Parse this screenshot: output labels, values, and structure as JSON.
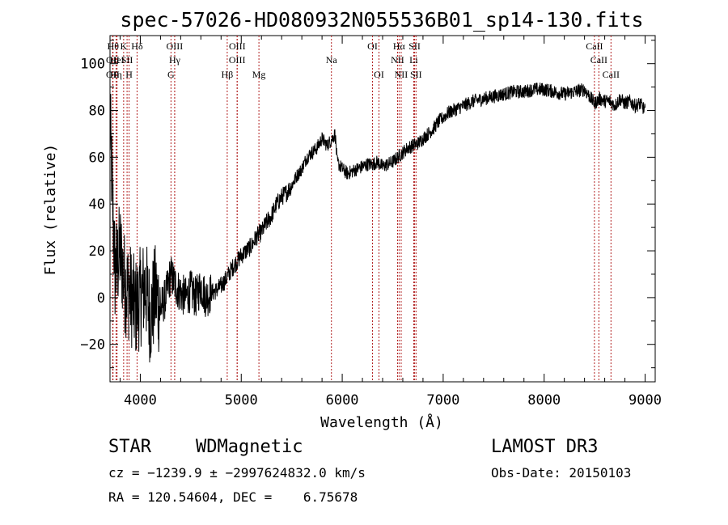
{
  "chart_data": {
    "type": "line",
    "title": "spec-57026-HD080932N055536B01_sp14-130.fits",
    "xlabel": "Wavelength (Å)",
    "ylabel": "Flux (relative)",
    "xlim": [
      3700,
      9100
    ],
    "ylim": [
      -36,
      112
    ],
    "xticks": [
      {
        "value": 4000,
        "label": "4000"
      },
      {
        "value": 5000,
        "label": "5000"
      },
      {
        "value": 6000,
        "label": "6000"
      },
      {
        "value": 7000,
        "label": "7000"
      },
      {
        "value": 8000,
        "label": "8000"
      },
      {
        "value": 9000,
        "label": "9000"
      }
    ],
    "yticks": [
      {
        "value": -20,
        "label": "−20"
      },
      {
        "value": 0,
        "label": "0"
      },
      {
        "value": 20,
        "label": "20"
      },
      {
        "value": 40,
        "label": "40"
      },
      {
        "value": 60,
        "label": "60"
      },
      {
        "value": 80,
        "label": "80"
      },
      {
        "value": 100,
        "label": "100"
      }
    ],
    "line_color": "#000000",
    "marker_color": "#b22222",
    "grid": false,
    "legend": "none",
    "series": [
      {
        "x": [
          3700,
          3750,
          3800,
          3850,
          3900,
          3950,
          4000,
          4050,
          4100,
          4150,
          4200,
          4250,
          4300,
          4350,
          4400,
          4450,
          4500,
          4550,
          4600,
          4650,
          4700,
          4750,
          4800,
          4850,
          4900,
          4950,
          5000,
          5050,
          5100,
          5150,
          5200,
          5250,
          5300,
          5350,
          5400,
          5450,
          5500,
          5550,
          5600,
          5650,
          5700,
          5750,
          5800,
          5850,
          5900,
          5930,
          5950,
          6000,
          6050,
          6100,
          6150,
          6200,
          6250,
          6300,
          6350,
          6400,
          6450,
          6500,
          6550,
          6600,
          6650,
          6700,
          6750,
          6800,
          6850,
          6900,
          6950,
          7000,
          7050,
          7100,
          7150,
          7200,
          7300,
          7400,
          7500,
          7600,
          7700,
          7800,
          7900,
          8000,
          8100,
          8200,
          8300,
          8400,
          8450,
          8500,
          8550,
          8600,
          8650,
          8700,
          8750,
          8800,
          8850,
          8900,
          8950,
          9000
        ],
        "y": [
          75,
          10,
          20,
          5,
          2,
          -5,
          0,
          5,
          -8,
          2,
          -5,
          0,
          10,
          5,
          2,
          0,
          3,
          0,
          5,
          0,
          2,
          3,
          5,
          8,
          12,
          15,
          18,
          20,
          22,
          26,
          28,
          32,
          35,
          40,
          43,
          45,
          48,
          52,
          55,
          60,
          62,
          64,
          68,
          65,
          68,
          70,
          58,
          55,
          53,
          54,
          55,
          56,
          57,
          57,
          58,
          56,
          57,
          58,
          60,
          62,
          64,
          65,
          66,
          68,
          70,
          72,
          75,
          77,
          79,
          80,
          81,
          82,
          84,
          85,
          86,
          87,
          88,
          88,
          89,
          89,
          88,
          87,
          88,
          89,
          86,
          83,
          85,
          84,
          84,
          82,
          85,
          83,
          84,
          82,
          83,
          80
        ]
      }
    ],
    "line_markers": [
      {
        "x": 3730,
        "label": "Hθ",
        "row": 1
      },
      {
        "x": 3727,
        "label": "OII",
        "row": 2
      },
      {
        "x": 3727,
        "label": "OII",
        "row": 3
      },
      {
        "x": 3835,
        "label": "K",
        "row": 1
      },
      {
        "x": 3770,
        "label": "HeI",
        "row": 2
      },
      {
        "x": 3760,
        "label": "Hη",
        "row": 3
      },
      {
        "x": 3968,
        "label": "Hδ",
        "row": 1
      },
      {
        "x": 3869,
        "label": "SII",
        "row": 2
      },
      {
        "x": 3889,
        "label": "H",
        "row": 3
      },
      {
        "x": 4340,
        "label": "OIII",
        "row": 1
      },
      {
        "x": 4341,
        "label": "Hγ",
        "row": 2
      },
      {
        "x": 4304,
        "label": "G",
        "row": 3
      },
      {
        "x": 4960,
        "label": "OIII",
        "row": 1
      },
      {
        "x": 4959,
        "label": "OIII",
        "row": 2
      },
      {
        "x": 4861,
        "label": "Hβ",
        "row": 3
      },
      {
        "x": 5175,
        "label": "Mg",
        "row": 3
      },
      {
        "x": 5893,
        "label": "Na",
        "row": 2
      },
      {
        "x": 6300,
        "label": "OI",
        "row": 1
      },
      {
        "x": 6364,
        "label": "OI",
        "row": 3
      },
      {
        "x": 6563,
        "label": "Hα",
        "row": 1
      },
      {
        "x": 6548,
        "label": "NII",
        "row": 2
      },
      {
        "x": 6584,
        "label": "NII",
        "row": 3
      },
      {
        "x": 6717,
        "label": "SII",
        "row": 1
      },
      {
        "x": 6708,
        "label": "Li",
        "row": 2
      },
      {
        "x": 6731,
        "label": "SII",
        "row": 3
      },
      {
        "x": 8498,
        "label": "CaII",
        "row": 1
      },
      {
        "x": 8542,
        "label": "CaII",
        "row": 2
      },
      {
        "x": 8662,
        "label": "CaII",
        "row": 3
      }
    ]
  },
  "info": {
    "class": "STAR",
    "subclass": "WDMagnetic",
    "survey": "LAMOST DR3",
    "cz_line": "cz = −1239.9 ± −2997624832.0 km/s",
    "obsdate_line": "Obs-Date: 20150103",
    "radec_line": "RA = 120.54604, DEC =    6.75678"
  }
}
